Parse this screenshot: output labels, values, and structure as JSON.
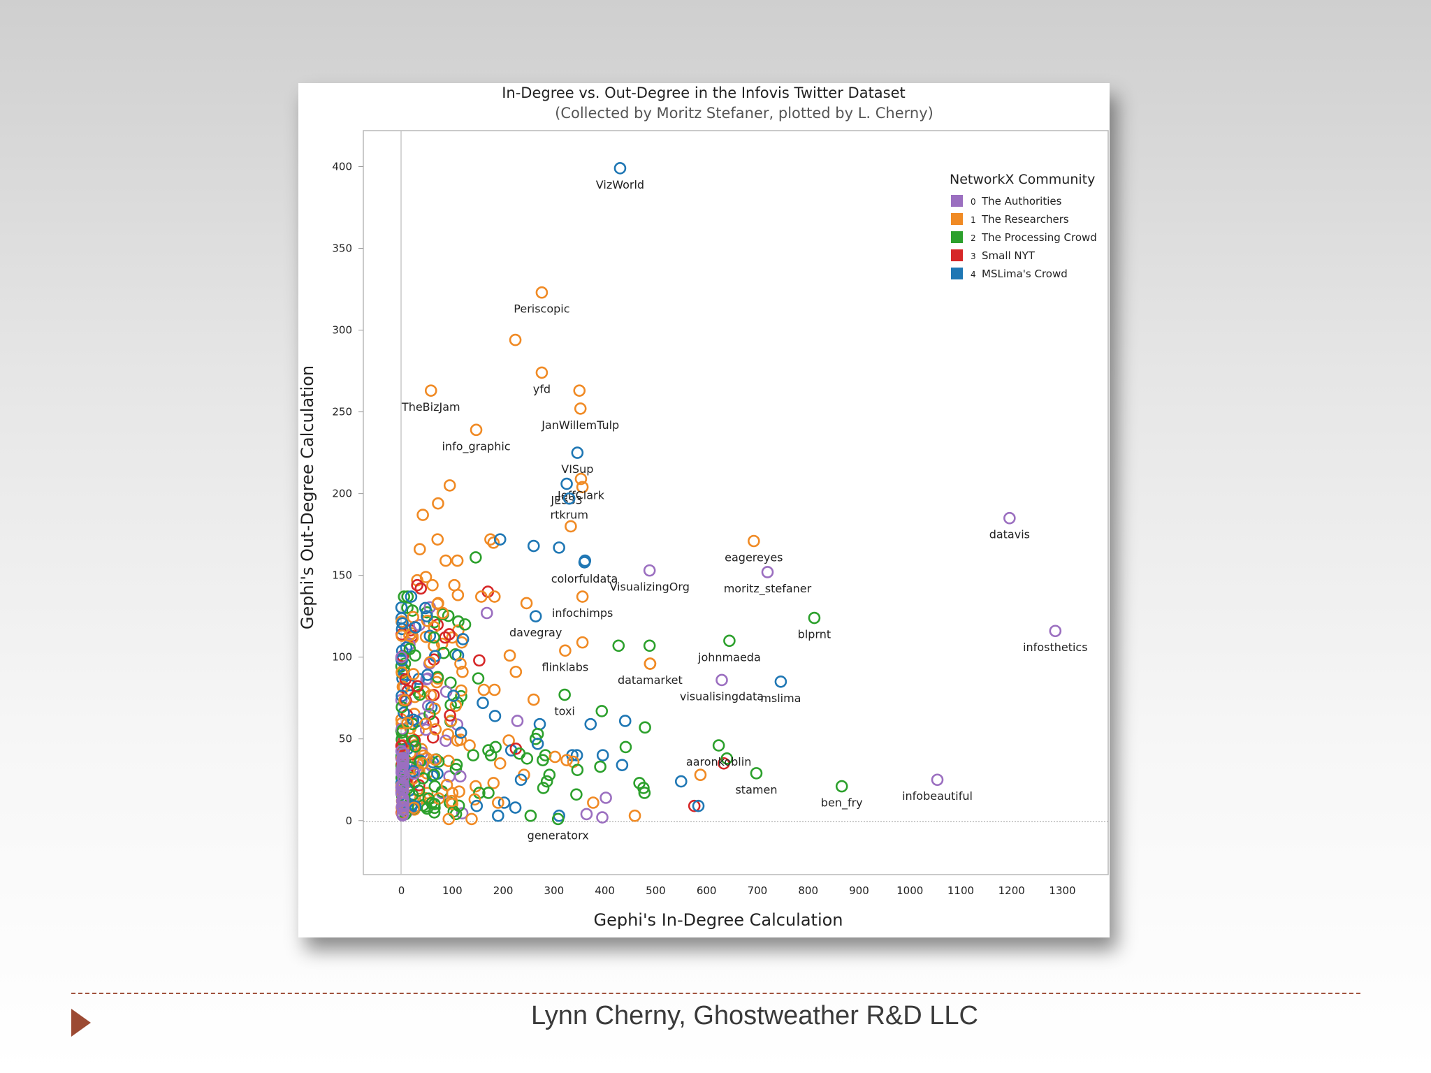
{
  "footer": {
    "credit": "Lynn Cherny, Ghostweather R&D LLC"
  },
  "chart_data": {
    "type": "scatter",
    "title": "In-Degree vs. Out-Degree in the Infovis Twitter Dataset",
    "subtitle": "(Collected by Moritz Stefaner, plotted by L. Cherny)",
    "xlabel": "Gephi's In-Degree Calculation",
    "ylabel": "Gephi's Out-Degree Calculation",
    "xlim": [
      -75,
      1390
    ],
    "ylim": [
      -33,
      422
    ],
    "xticks": [
      0,
      100,
      200,
      300,
      400,
      500,
      600,
      700,
      800,
      900,
      1000,
      1100,
      1200,
      1300
    ],
    "yticks": [
      0,
      50,
      100,
      150,
      200,
      250,
      300,
      350,
      400
    ],
    "legend": {
      "title": "NetworkX Community",
      "position": "top-right",
      "items": [
        {
          "num": "0",
          "name": "The Authorities",
          "color": "#9b6fc0"
        },
        {
          "num": "1",
          "name": "The Researchers",
          "color": "#f08a24"
        },
        {
          "num": "2",
          "name": "The Processing Crowd",
          "color": "#2ca02c"
        },
        {
          "num": "3",
          "name": "Small NYT",
          "color": "#d62728"
        },
        {
          "num": "4",
          "name": "MSLima's Crowd",
          "color": "#1f77b4"
        }
      ]
    },
    "labeled_points": [
      {
        "label": "VizWorld",
        "x": 430,
        "y": 399,
        "community": 4
      },
      {
        "label": "Periscopic",
        "x": 276,
        "y": 323,
        "community": 1
      },
      {
        "label": "yfd",
        "x": 276,
        "y": 274,
        "community": 1
      },
      {
        "label": "TheBizJam",
        "x": 58,
        "y": 263,
        "community": 1
      },
      {
        "label": "JanWillemTulp",
        "x": 352,
        "y": 252,
        "community": 1
      },
      {
        "label": "info_graphic",
        "x": 147,
        "y": 239,
        "community": 1
      },
      {
        "label": "VISup",
        "x": 346,
        "y": 225,
        "community": 4
      },
      {
        "label": "JESS3",
        "x": 325,
        "y": 206,
        "community": 4
      },
      {
        "label": "JeffClark",
        "x": 353,
        "y": 209,
        "community": 1
      },
      {
        "label": "rtkrum",
        "x": 330,
        "y": 197,
        "community": 4
      },
      {
        "label": "datavis",
        "x": 1196,
        "y": 185,
        "community": 0
      },
      {
        "label": "eagereyes",
        "x": 693,
        "y": 171,
        "community": 1
      },
      {
        "label": "colorfuldata",
        "x": 360,
        "y": 158,
        "community": 4
      },
      {
        "label": "VisualizingOrg",
        "x": 488,
        "y": 153,
        "community": 0
      },
      {
        "label": "moritz_stefaner",
        "x": 720,
        "y": 152,
        "community": 0
      },
      {
        "label": "infochimps",
        "x": 356,
        "y": 137,
        "community": 1
      },
      {
        "label": "davegray",
        "x": 264,
        "y": 125,
        "community": 4
      },
      {
        "label": "blprnt",
        "x": 812,
        "y": 124,
        "community": 2
      },
      {
        "label": "infosthetics",
        "x": 1286,
        "y": 116,
        "community": 0
      },
      {
        "label": "johnmaeda",
        "x": 645,
        "y": 110,
        "community": 2
      },
      {
        "label": "flinklabs",
        "x": 322,
        "y": 104,
        "community": 1
      },
      {
        "label": "datamarket",
        "x": 489,
        "y": 96,
        "community": 1
      },
      {
        "label": "visualisingdata",
        "x": 630,
        "y": 86,
        "community": 0
      },
      {
        "label": "mslima",
        "x": 746,
        "y": 85,
        "community": 4
      },
      {
        "label": "toxi",
        "x": 321,
        "y": 77,
        "community": 2
      },
      {
        "label": "aaronkoblin",
        "x": 624,
        "y": 46,
        "community": 2
      },
      {
        "label": "stamen",
        "x": 698,
        "y": 29,
        "community": 2
      },
      {
        "label": "ben_fry",
        "x": 866,
        "y": 21,
        "community": 2
      },
      {
        "label": "infobeautiful",
        "x": 1054,
        "y": 25,
        "community": 0
      },
      {
        "label": "generatorx",
        "x": 308,
        "y": 1,
        "community": 2
      }
    ],
    "points": [
      {
        "x": 224,
        "y": 294,
        "c": 1
      },
      {
        "x": 350,
        "y": 263,
        "c": 1
      },
      {
        "x": 356,
        "y": 204,
        "c": 1
      },
      {
        "x": 333,
        "y": 180,
        "c": 1
      },
      {
        "x": 95,
        "y": 205,
        "c": 1
      },
      {
        "x": 72,
        "y": 194,
        "c": 1
      },
      {
        "x": 42,
        "y": 187,
        "c": 1
      },
      {
        "x": 71,
        "y": 172,
        "c": 1
      },
      {
        "x": 36,
        "y": 166,
        "c": 1
      },
      {
        "x": 175,
        "y": 172,
        "c": 1
      },
      {
        "x": 181,
        "y": 170,
        "c": 1
      },
      {
        "x": 194,
        "y": 172,
        "c": 4
      },
      {
        "x": 260,
        "y": 168,
        "c": 4
      },
      {
        "x": 310,
        "y": 167,
        "c": 4
      },
      {
        "x": 361,
        "y": 159,
        "c": 4
      },
      {
        "x": 146,
        "y": 161,
        "c": 2
      },
      {
        "x": 87,
        "y": 159,
        "c": 1
      },
      {
        "x": 110,
        "y": 159,
        "c": 1
      },
      {
        "x": 104,
        "y": 144,
        "c": 1
      },
      {
        "x": 48,
        "y": 149,
        "c": 1
      },
      {
        "x": 31,
        "y": 147,
        "c": 1
      },
      {
        "x": 31,
        "y": 144,
        "c": 3
      },
      {
        "x": 38,
        "y": 142,
        "c": 3
      },
      {
        "x": 61,
        "y": 144,
        "c": 1
      },
      {
        "x": 5,
        "y": 137,
        "c": 2
      },
      {
        "x": 12,
        "y": 137,
        "c": 2
      },
      {
        "x": 19,
        "y": 137,
        "c": 4
      },
      {
        "x": 170,
        "y": 140,
        "c": 3
      },
      {
        "x": 157,
        "y": 137,
        "c": 1
      },
      {
        "x": 183,
        "y": 137,
        "c": 1
      },
      {
        "x": 111,
        "y": 138,
        "c": 1
      },
      {
        "x": 246,
        "y": 133,
        "c": 1
      },
      {
        "x": 168,
        "y": 127,
        "c": 0
      },
      {
        "x": 47,
        "y": 130,
        "c": 4
      },
      {
        "x": 50,
        "y": 125,
        "c": 4
      },
      {
        "x": 72,
        "y": 133,
        "c": 1
      },
      {
        "x": 81,
        "y": 127,
        "c": 1
      },
      {
        "x": 125,
        "y": 120,
        "c": 2
      },
      {
        "x": 100,
        "y": 112,
        "c": 1
      },
      {
        "x": 86,
        "y": 112,
        "c": 3
      },
      {
        "x": 94,
        "y": 114,
        "c": 3
      },
      {
        "x": 121,
        "y": 111,
        "c": 4
      },
      {
        "x": 56,
        "y": 113,
        "c": 4
      },
      {
        "x": 64,
        "y": 112,
        "c": 2
      },
      {
        "x": 153,
        "y": 98,
        "c": 3
      },
      {
        "x": 213,
        "y": 101,
        "c": 1
      },
      {
        "x": 225,
        "y": 91,
        "c": 1
      },
      {
        "x": 356,
        "y": 109,
        "c": 1
      },
      {
        "x": 427,
        "y": 107,
        "c": 2
      },
      {
        "x": 488,
        "y": 107,
        "c": 2
      },
      {
        "x": 489,
        "y": 96,
        "c": 1
      },
      {
        "x": 116,
        "y": 96,
        "c": 1
      },
      {
        "x": 120,
        "y": 91,
        "c": 1
      },
      {
        "x": 151,
        "y": 87,
        "c": 2
      },
      {
        "x": 183,
        "y": 80,
        "c": 1
      },
      {
        "x": 162,
        "y": 80,
        "c": 1
      },
      {
        "x": 160,
        "y": 72,
        "c": 4
      },
      {
        "x": 184,
        "y": 64,
        "c": 4
      },
      {
        "x": 260,
        "y": 74,
        "c": 1
      },
      {
        "x": 394,
        "y": 67,
        "c": 2
      },
      {
        "x": 372,
        "y": 59,
        "c": 4
      },
      {
        "x": 440,
        "y": 61,
        "c": 4
      },
      {
        "x": 479,
        "y": 57,
        "c": 2
      },
      {
        "x": 228,
        "y": 61,
        "c": 0
      },
      {
        "x": 272,
        "y": 59,
        "c": 4
      },
      {
        "x": 268,
        "y": 53,
        "c": 2
      },
      {
        "x": 264,
        "y": 50,
        "c": 2
      },
      {
        "x": 268,
        "y": 47,
        "c": 4
      },
      {
        "x": 211,
        "y": 49,
        "c": 1
      },
      {
        "x": 185,
        "y": 45,
        "c": 2
      },
      {
        "x": 134,
        "y": 46,
        "c": 1
      },
      {
        "x": 141,
        "y": 40,
        "c": 2
      },
      {
        "x": 171,
        "y": 43,
        "c": 2
      },
      {
        "x": 176,
        "y": 40,
        "c": 2
      },
      {
        "x": 216,
        "y": 43,
        "c": 4
      },
      {
        "x": 225,
        "y": 44,
        "c": 3
      },
      {
        "x": 232,
        "y": 41,
        "c": 2
      },
      {
        "x": 247,
        "y": 38,
        "c": 2
      },
      {
        "x": 283,
        "y": 40,
        "c": 2
      },
      {
        "x": 278,
        "y": 37,
        "c": 2
      },
      {
        "x": 302,
        "y": 39,
        "c": 1
      },
      {
        "x": 336,
        "y": 40,
        "c": 4
      },
      {
        "x": 345,
        "y": 40,
        "c": 4
      },
      {
        "x": 338,
        "y": 36,
        "c": 1
      },
      {
        "x": 396,
        "y": 40,
        "c": 4
      },
      {
        "x": 441,
        "y": 45,
        "c": 2
      },
      {
        "x": 391,
        "y": 33,
        "c": 2
      },
      {
        "x": 434,
        "y": 34,
        "c": 4
      },
      {
        "x": 346,
        "y": 31,
        "c": 2
      },
      {
        "x": 194,
        "y": 35,
        "c": 1
      },
      {
        "x": 241,
        "y": 28,
        "c": 1
      },
      {
        "x": 235,
        "y": 25,
        "c": 4
      },
      {
        "x": 291,
        "y": 28,
        "c": 2
      },
      {
        "x": 286,
        "y": 24,
        "c": 2
      },
      {
        "x": 279,
        "y": 20,
        "c": 2
      },
      {
        "x": 224,
        "y": 8,
        "c": 4
      },
      {
        "x": 202,
        "y": 11,
        "c": 4
      },
      {
        "x": 190,
        "y": 11,
        "c": 1
      },
      {
        "x": 181,
        "y": 23,
        "c": 1
      },
      {
        "x": 146,
        "y": 21,
        "c": 1
      },
      {
        "x": 153,
        "y": 17,
        "c": 2
      },
      {
        "x": 171,
        "y": 17,
        "c": 2
      },
      {
        "x": 144,
        "y": 13,
        "c": 1
      },
      {
        "x": 148,
        "y": 9,
        "c": 4
      },
      {
        "x": 93,
        "y": 1,
        "c": 1
      },
      {
        "x": 138,
        "y": 1,
        "c": 1
      },
      {
        "x": 190,
        "y": 3,
        "c": 4
      },
      {
        "x": 254,
        "y": 3,
        "c": 2
      },
      {
        "x": 310,
        "y": 3,
        "c": 4
      },
      {
        "x": 364,
        "y": 4,
        "c": 0
      },
      {
        "x": 395,
        "y": 2,
        "c": 0
      },
      {
        "x": 402,
        "y": 14,
        "c": 0
      },
      {
        "x": 377,
        "y": 11,
        "c": 1
      },
      {
        "x": 344,
        "y": 16,
        "c": 2
      },
      {
        "x": 468,
        "y": 23,
        "c": 2
      },
      {
        "x": 476,
        "y": 20,
        "c": 2
      },
      {
        "x": 478,
        "y": 17,
        "c": 2
      },
      {
        "x": 550,
        "y": 24,
        "c": 4
      },
      {
        "x": 588,
        "y": 28,
        "c": 1
      },
      {
        "x": 576,
        "y": 9,
        "c": 3
      },
      {
        "x": 584,
        "y": 9,
        "c": 4
      },
      {
        "x": 634,
        "y": 35,
        "c": 3
      },
      {
        "x": 640,
        "y": 38,
        "c": 2
      },
      {
        "x": 459,
        "y": 3,
        "c": 1
      },
      {
        "x": 325,
        "y": 37,
        "c": 1
      },
      {
        "x": 42,
        "y": 35,
        "c": 1
      },
      {
        "x": 64,
        "y": 28,
        "c": 2
      }
    ]
  }
}
